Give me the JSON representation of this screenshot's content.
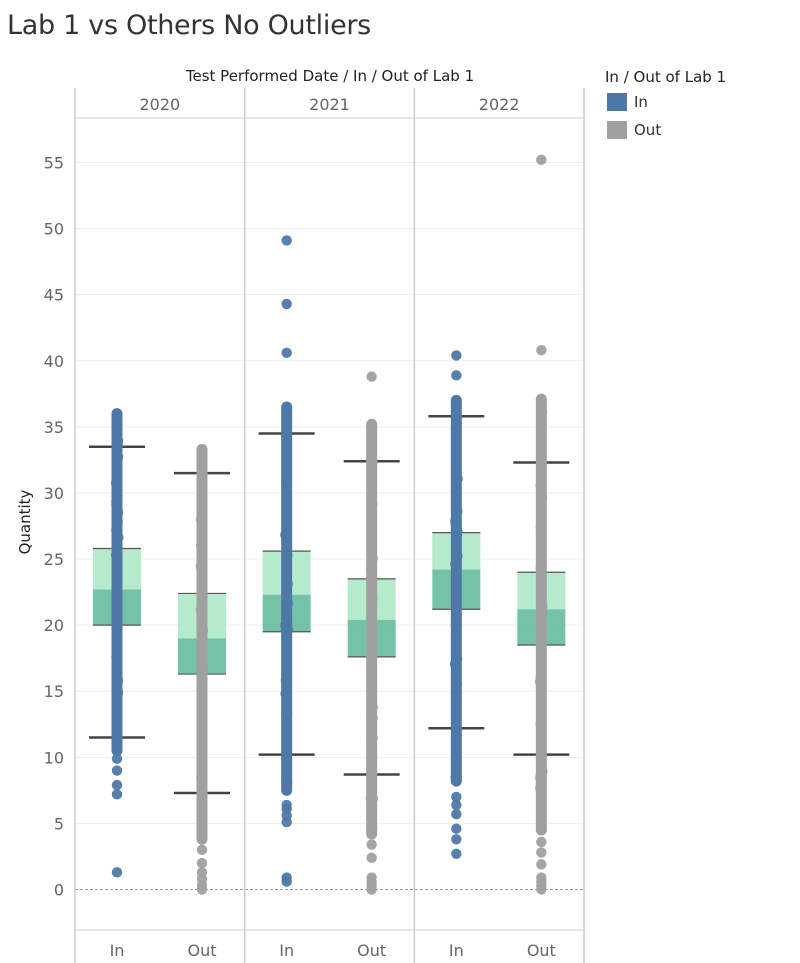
{
  "title": "Lab 1 vs Others No Outliers",
  "colors": {
    "in": "#4e79a7",
    "out": "#a0a0a0",
    "box_upper": "#a8e6c4",
    "box_lower": "#5cb896",
    "whisker": "#444444"
  },
  "legend": {
    "title": "In / Out of Lab 1",
    "items": [
      {
        "label": "In",
        "color": "#4e79a7"
      },
      {
        "label": "Out",
        "color": "#a0a0a0"
      }
    ]
  },
  "chart_data": {
    "type": "box",
    "header_title": "Test Performed Date  /  In / Out of Lab 1",
    "ylabel": "Quantity",
    "ylim": [
      -3,
      59
    ],
    "yticks": [
      0,
      5,
      10,
      15,
      20,
      25,
      30,
      35,
      40,
      45,
      50,
      55
    ],
    "groups": [
      {
        "year": "2020",
        "boxes": [
          {
            "category": "In",
            "whisker_low": 11.5,
            "q1": 20.0,
            "median": 22.7,
            "q3": 25.8,
            "whisker_high": 33.5,
            "points_dense": [
              10.5,
              36.0
            ],
            "points_sparse": [
              1.3,
              7.2,
              7.9,
              9.0,
              9.9,
              35.0
            ]
          },
          {
            "category": "Out",
            "whisker_low": 7.3,
            "q1": 16.3,
            "median": 19.0,
            "q3": 22.4,
            "whisker_high": 31.5,
            "points_dense": [
              3.8,
              33.3
            ],
            "points_sparse": [
              0.0,
              0.3,
              0.8,
              1.3,
              2.0,
              3.0
            ]
          }
        ]
      },
      {
        "year": "2021",
        "boxes": [
          {
            "category": "In",
            "whisker_low": 10.2,
            "q1": 19.5,
            "median": 22.3,
            "q3": 25.6,
            "whisker_high": 34.5,
            "points_dense": [
              7.5,
              36.5
            ],
            "points_sparse": [
              0.6,
              0.9,
              5.1,
              5.6,
              6.1,
              6.4,
              40.6,
              44.3,
              49.1
            ]
          },
          {
            "category": "Out",
            "whisker_low": 8.7,
            "q1": 17.6,
            "median": 20.4,
            "q3": 23.5,
            "whisker_high": 32.4,
            "points_dense": [
              4.2,
              35.2
            ],
            "points_sparse": [
              0.0,
              0.3,
              0.6,
              0.9,
              2.4,
              3.4,
              38.8
            ]
          }
        ]
      },
      {
        "year": "2022",
        "boxes": [
          {
            "category": "In",
            "whisker_low": 12.2,
            "q1": 21.2,
            "median": 24.2,
            "q3": 27.0,
            "whisker_high": 35.8,
            "points_dense": [
              8.2,
              37.0
            ],
            "points_sparse": [
              2.7,
              3.8,
              4.6,
              5.7,
              6.4,
              7.0,
              38.9,
              40.4
            ]
          },
          {
            "category": "Out",
            "whisker_low": 10.2,
            "q1": 18.5,
            "median": 21.2,
            "q3": 24.0,
            "whisker_high": 32.3,
            "points_dense": [
              4.5,
              37.1
            ],
            "points_sparse": [
              0.0,
              0.3,
              0.6,
              0.9,
              1.9,
              2.8,
              3.6,
              40.8,
              55.2
            ]
          }
        ]
      }
    ]
  }
}
